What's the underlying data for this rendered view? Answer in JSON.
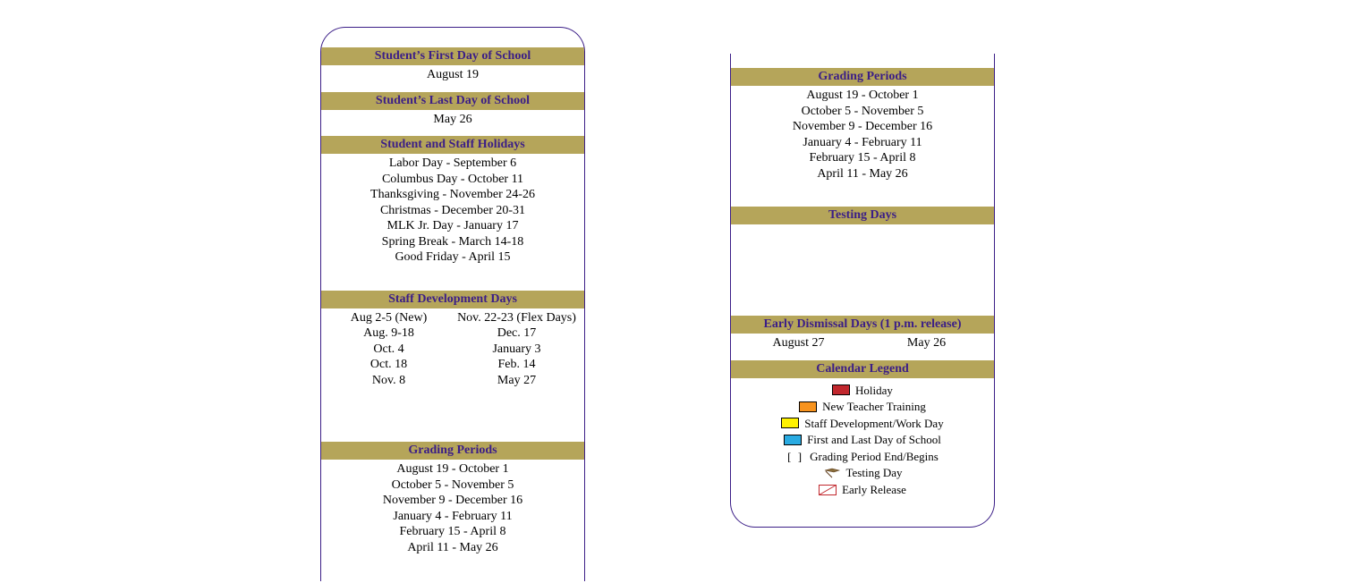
{
  "colors": {
    "border": "#3b1e87",
    "header_bg": "#b5a55a",
    "header_text": "#3b1e87",
    "body_text": "#000000",
    "holiday": "#c1272d",
    "new_teacher": "#f7931e",
    "staff_dev": "#fff200",
    "first_last": "#29abe2",
    "early_release_fill": "#ffffff",
    "early_release_stroke": "#c1272d"
  },
  "left": {
    "first_day": {
      "header": "Student’s First Day of School",
      "lines": [
        "August 19"
      ]
    },
    "last_day": {
      "header": "Student’s Last Day of School",
      "lines": [
        "May 26"
      ]
    },
    "holidays": {
      "header": "Student and Staff Holidays",
      "lines": [
        "Labor Day - September 6",
        "Columbus Day - October 11",
        "Thanksgiving - November 24-26",
        "Christmas - December 20-31",
        "MLK Jr. Day - January 17",
        "Spring Break - March 14-18",
        "Good Friday - April 15"
      ]
    },
    "staff_dev": {
      "header": "Staff Development Days",
      "left_col": [
        "Aug 2-5 (New)",
        "Aug. 9-18",
        "Oct. 4",
        "Oct. 18",
        "Nov. 8"
      ],
      "right_col": [
        "Nov. 22-23 (Flex Days)",
        "Dec. 17",
        "January 3",
        "Feb. 14",
        "May 27"
      ]
    },
    "grading": {
      "header": "Grading Periods",
      "lines": [
        "August 19 - October 1",
        "October 5 - November 5",
        "November 9 - December 16",
        "January 4 - February 11",
        "February 15 - April 8",
        "April 11 - May 26"
      ]
    }
  },
  "right": {
    "grading": {
      "header": "Grading Periods",
      "lines": [
        "August 19 - October 1",
        "October 5 - November 5",
        "November 9 - December 16",
        "January 4 - February 11",
        "February 15 - April 8",
        "April 11 - May 26"
      ]
    },
    "testing": {
      "header": "Testing Days",
      "lines": []
    },
    "early_dismissal": {
      "header": "Early Dismissal Days (1 p.m. release)",
      "left_col": [
        "August 27"
      ],
      "right_col": [
        "May 26"
      ]
    },
    "legend": {
      "header": "Calendar Legend",
      "items": [
        {
          "kind": "swatch",
          "color": "#c1272d",
          "label": "Holiday"
        },
        {
          "kind": "swatch",
          "color": "#f7931e",
          "label": "New Teacher Training"
        },
        {
          "kind": "swatch",
          "color": "#fff200",
          "label": "Staff Development/Work Day"
        },
        {
          "kind": "swatch",
          "color": "#29abe2",
          "label": "First and Last Day of School"
        },
        {
          "kind": "bracket",
          "symbol": "[ ]",
          "label": "Grading Period End/Begins"
        },
        {
          "kind": "testing",
          "label": "Testing Day"
        },
        {
          "kind": "early",
          "label": "Early Release"
        }
      ]
    }
  }
}
